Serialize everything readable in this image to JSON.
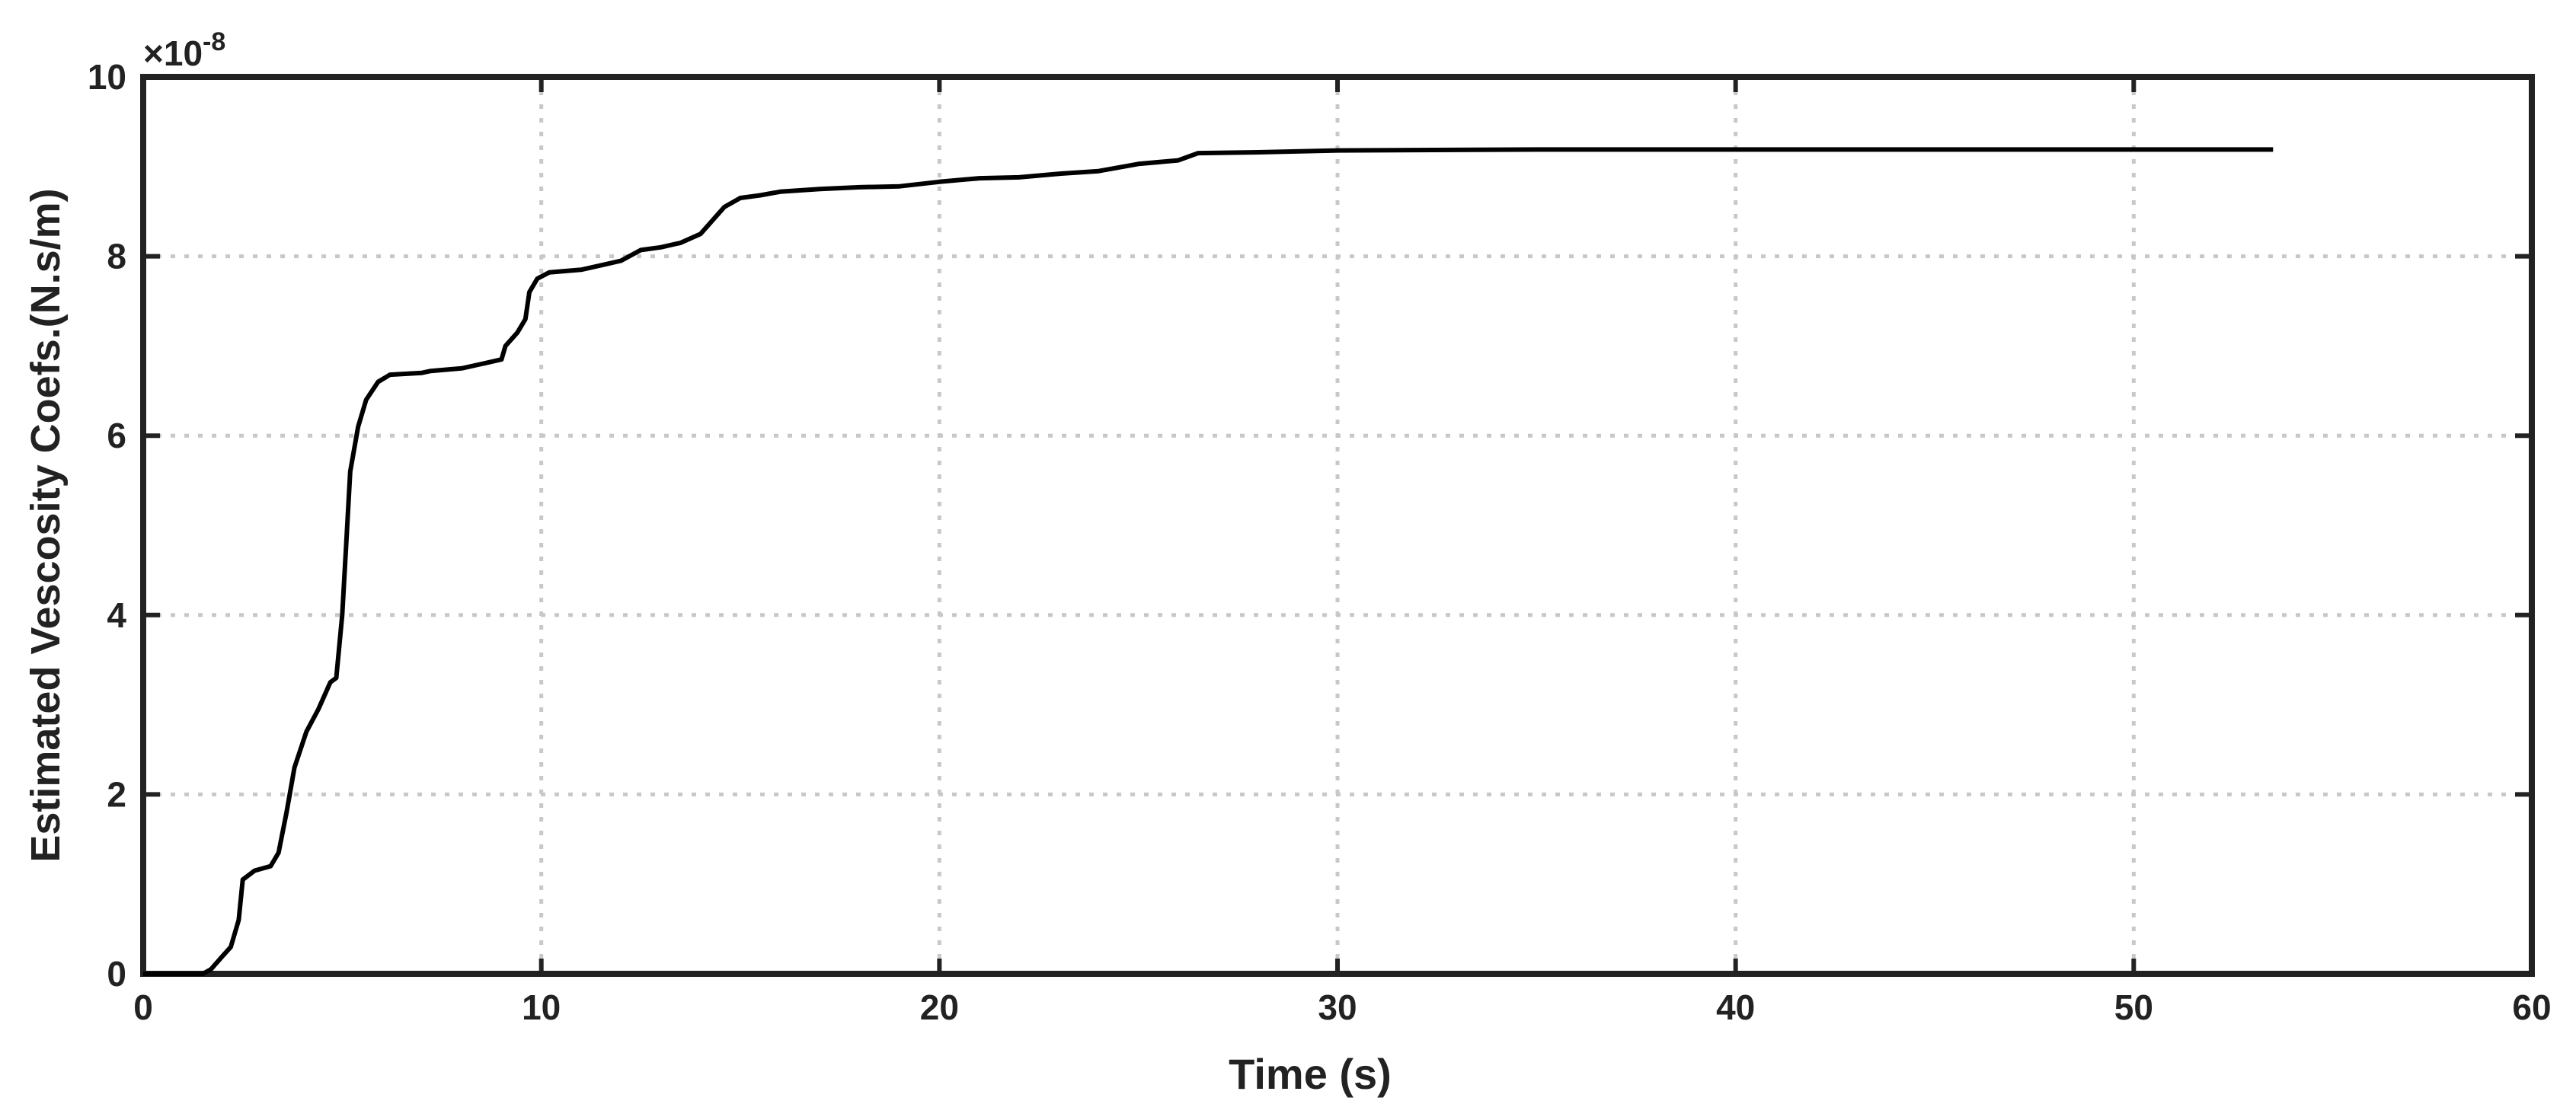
{
  "chart_data": {
    "type": "line",
    "x_label": "Time (s)",
    "y_label": "Estimated Vescosity Coefs.(N.s/m)",
    "y_multiplier": {
      "base": "×10",
      "exponent": "-8"
    },
    "xlim": [
      0,
      60
    ],
    "xticks": [
      0,
      10,
      20,
      30,
      40,
      50,
      60
    ],
    "ylim": [
      0,
      10
    ],
    "yticks": [
      0,
      2,
      4,
      6,
      8,
      10
    ],
    "grid": true,
    "x": [
      0,
      1.5,
      1.7,
      2.0,
      2.2,
      2.4,
      2.5,
      2.8,
      3.2,
      3.4,
      3.6,
      3.8,
      4.1,
      4.4,
      4.7,
      4.85,
      5.0,
      5.1,
      5.2,
      5.4,
      5.6,
      5.9,
      6.2,
      7,
      7.2,
      8,
      8.5,
      9,
      9.1,
      9.4,
      9.6,
      9.7,
      9.9,
      10.2,
      11,
      11.5,
      12,
      12.5,
      13,
      13.5,
      14,
      14.3,
      14.6,
      15,
      15.5,
      16,
      17,
      18,
      19,
      20,
      21,
      22,
      23,
      24,
      25,
      26,
      26.5,
      28,
      30,
      35,
      40,
      45,
      50,
      53.5
    ],
    "series": [
      {
        "color": "#000000",
        "values": [
          0,
          0,
          0.05,
          0.2,
          0.3,
          0.6,
          1.05,
          1.15,
          1.2,
          1.35,
          1.8,
          2.3,
          2.7,
          2.95,
          3.25,
          3.3,
          4.0,
          4.8,
          5.6,
          6.1,
          6.4,
          6.6,
          6.68,
          6.7,
          6.72,
          6.75,
          6.8,
          6.85,
          7.0,
          7.15,
          7.3,
          7.6,
          7.75,
          7.82,
          7.85,
          7.9,
          7.95,
          8.07,
          8.1,
          8.15,
          8.25,
          8.4,
          8.55,
          8.65,
          8.68,
          8.72,
          8.75,
          8.77,
          8.78,
          8.83,
          8.87,
          8.88,
          8.92,
          8.95,
          9.03,
          9.07,
          9.15,
          9.16,
          9.18,
          9.19,
          9.19,
          9.19,
          9.19,
          9.19
        ]
      }
    ]
  }
}
